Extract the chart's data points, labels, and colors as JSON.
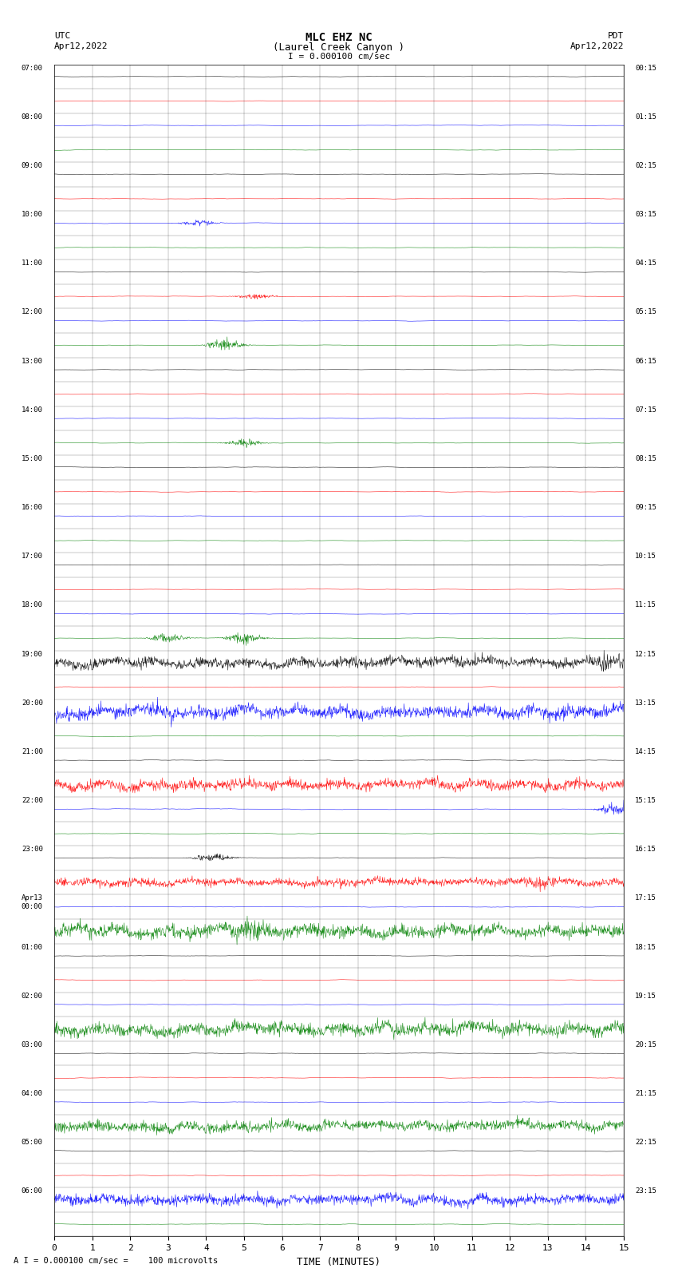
{
  "title_line1": "MLC EHZ NC",
  "title_line2": "(Laurel Creek Canyon )",
  "title_line3": "I = 0.000100 cm/sec",
  "left_header": "UTC\nApr12,2022",
  "right_header": "PDT\nApr12,2022",
  "xlabel": "TIME (MINUTES)",
  "footer": "A I = 0.000100 cm/sec =    100 microvolts",
  "bg_color": "#ffffff",
  "trace_colors": [
    "black",
    "red",
    "blue",
    "green"
  ],
  "num_rows": 48,
  "xlim": [
    0,
    15
  ],
  "xticks": [
    0,
    1,
    2,
    3,
    4,
    5,
    6,
    7,
    8,
    9,
    10,
    11,
    12,
    13,
    14,
    15
  ],
  "left_times": [
    "07:00",
    "",
    "08:00",
    "",
    "09:00",
    "",
    "10:00",
    "",
    "11:00",
    "",
    "12:00",
    "",
    "13:00",
    "",
    "14:00",
    "",
    "15:00",
    "",
    "16:00",
    "",
    "17:00",
    "",
    "18:00",
    "",
    "19:00",
    "",
    "20:00",
    "",
    "21:00",
    "",
    "22:00",
    "",
    "23:00",
    "",
    "Apr13\n00:00",
    "",
    "01:00",
    "",
    "02:00",
    "",
    "03:00",
    "",
    "04:00",
    "",
    "05:00",
    "",
    "06:00",
    ""
  ],
  "right_times": [
    "00:15",
    "",
    "01:15",
    "",
    "02:15",
    "",
    "03:15",
    "",
    "04:15",
    "",
    "05:15",
    "",
    "06:15",
    "",
    "07:15",
    "",
    "08:15",
    "",
    "09:15",
    "",
    "10:15",
    "",
    "11:15",
    "",
    "12:15",
    "",
    "13:15",
    "",
    "14:15",
    "",
    "15:15",
    "",
    "16:15",
    "",
    "17:15",
    "",
    "18:15",
    "",
    "19:15",
    "",
    "20:15",
    "",
    "21:15",
    "",
    "22:15",
    "",
    "23:15",
    ""
  ],
  "noise_levels": [
    0.3,
    0.3,
    0.3,
    0.3,
    0.3,
    0.3,
    0.3,
    0.3,
    0.3,
    0.3,
    0.3,
    0.3,
    0.3,
    0.3,
    0.3,
    0.3,
    0.3,
    0.3,
    0.3,
    0.3,
    0.3,
    0.3,
    0.3,
    0.3,
    2.0,
    0.4,
    2.5,
    0.4,
    0.4,
    2.0,
    0.4,
    0.4,
    0.4,
    1.5,
    0.4,
    2.5,
    0.4,
    0.4,
    0.4,
    2.5,
    0.4,
    0.4,
    0.4,
    2.0,
    0.4,
    0.4,
    2.0,
    0.4
  ],
  "special_events": [
    {
      "row": 11,
      "x": 4.5,
      "color": "green",
      "amplitude": 3.0
    },
    {
      "row": 9,
      "x": 5.3,
      "color": "red",
      "amplitude": 1.5
    },
    {
      "row": 6,
      "x": 3.8,
      "color": "red",
      "amplitude": 1.5
    },
    {
      "row": 15,
      "x": 5.0,
      "color": "blue",
      "amplitude": 2.0
    },
    {
      "row": 23,
      "x": 5.0,
      "color": "blue",
      "amplitude": 3.0
    },
    {
      "row": 23,
      "x": 3.0,
      "color": "red",
      "amplitude": 2.5
    },
    {
      "row": 24,
      "x": 14.5,
      "color": "green",
      "amplitude": 5.0
    },
    {
      "row": 30,
      "x": 14.8,
      "color": "red",
      "amplitude": 3.0
    },
    {
      "row": 32,
      "x": 4.2,
      "color": "blue",
      "amplitude": 2.5
    },
    {
      "row": 33,
      "x": 12.8,
      "color": "red",
      "amplitude": 3.5
    },
    {
      "row": 35,
      "x": 5.2,
      "color": "green",
      "amplitude": 5.0
    }
  ]
}
